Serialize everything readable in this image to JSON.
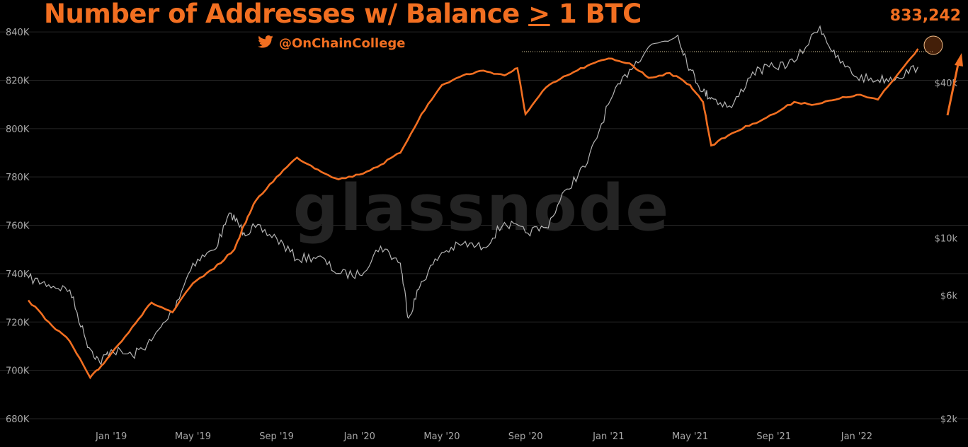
{
  "header": {
    "title_prefix": "Number of Addresses w/ Balance ",
    "title_ge": ">",
    "title_suffix": " 1 BTC",
    "handle": "@OnChainCollege",
    "watermark": "glassnode",
    "latest_value": "833,242"
  },
  "colors": {
    "accent": "#f26f21",
    "price": "#b5b5b5",
    "grid": "#262626",
    "background": "#000000"
  },
  "icons": {
    "handle": "twitter-bird-icon",
    "trend": "up-arrow-icon",
    "highlight": "highlight-circle"
  },
  "chart_data": {
    "type": "line",
    "title": "Number of Addresses w/ Balance > 1 BTC",
    "x_ticks": [
      "Jan '19",
      "May '19",
      "Sep '19",
      "Jan '20",
      "May '20",
      "Sep '20",
      "Jan '21",
      "May '21",
      "Sep '21",
      "Jan '22"
    ],
    "y_left": {
      "ticks": [
        "680K",
        "700K",
        "720K",
        "740K",
        "760K",
        "780K",
        "800K",
        "820K",
        "840K"
      ],
      "range": [
        680000,
        845000
      ]
    },
    "y_right": {
      "scale": "log",
      "ticks": [
        "$2k",
        "$6k",
        "$10k",
        "$40k"
      ]
    },
    "grid": "horizontal",
    "latest_value": 833242,
    "series": [
      {
        "axis": "left",
        "color": "#f26f21",
        "x": [
          "2018-09-01",
          "2018-10-01",
          "2018-11-01",
          "2018-12-01",
          "2018-12-15",
          "2019-01-01",
          "2019-02-01",
          "2019-03-01",
          "2019-04-01",
          "2019-05-01",
          "2019-06-01",
          "2019-07-01",
          "2019-07-15",
          "2019-08-01",
          "2019-09-01",
          "2019-10-01",
          "2019-11-01",
          "2019-12-01",
          "2020-01-01",
          "2020-02-01",
          "2020-03-01",
          "2020-04-01",
          "2020-05-01",
          "2020-06-01",
          "2020-07-01",
          "2020-08-01",
          "2020-08-20",
          "2020-09-01",
          "2020-10-01",
          "2020-11-01",
          "2020-12-01",
          "2021-01-01",
          "2021-02-01",
          "2021-03-01",
          "2021-04-01",
          "2021-05-01",
          "2021-05-20",
          "2021-06-01",
          "2021-07-01",
          "2021-08-01",
          "2021-09-01",
          "2021-10-01",
          "2021-11-01",
          "2021-12-01",
          "2022-01-01",
          "2022-02-01",
          "2022-03-01",
          "2022-04-01"
        ],
        "y": [
          729000,
          720000,
          712000,
          697000,
          701000,
          707000,
          718000,
          728000,
          724000,
          736000,
          742000,
          750000,
          760000,
          770000,
          780000,
          788000,
          783000,
          779000,
          781000,
          785000,
          790000,
          806000,
          818000,
          822000,
          824000,
          822000,
          825000,
          806000,
          817000,
          822000,
          826000,
          829000,
          827000,
          821000,
          823000,
          818000,
          811000,
          793000,
          798000,
          802000,
          806000,
          811000,
          810000,
          812000,
          814000,
          812000,
          822000,
          833000
        ]
      },
      {
        "axis": "right",
        "color": "#b5b5b5",
        "x": [
          "2018-09-01",
          "2018-10-01",
          "2018-11-01",
          "2018-11-25",
          "2018-12-15",
          "2019-01-01",
          "2019-02-01",
          "2019-03-01",
          "2019-04-01",
          "2019-05-01",
          "2019-06-01",
          "2019-06-26",
          "2019-07-15",
          "2019-08-01",
          "2019-09-01",
          "2019-10-01",
          "2019-11-01",
          "2019-12-01",
          "2020-01-01",
          "2020-02-01",
          "2020-03-01",
          "2020-03-13",
          "2020-04-01",
          "2020-05-01",
          "2020-06-01",
          "2020-07-01",
          "2020-08-01",
          "2020-09-01",
          "2020-10-01",
          "2020-11-01",
          "2020-12-01",
          "2021-01-01",
          "2021-02-01",
          "2021-03-01",
          "2021-04-13",
          "2021-05-01",
          "2021-05-20",
          "2021-06-01",
          "2021-07-01",
          "2021-08-01",
          "2021-09-01",
          "2021-10-01",
          "2021-11-08",
          "2021-12-01",
          "2022-01-01",
          "2022-02-01",
          "2022-03-01",
          "2022-04-01"
        ],
        "y": [
          7000,
          6600,
          6300,
          4000,
          3300,
          3700,
          3500,
          4000,
          5200,
          8000,
          9000,
          12500,
          10500,
          11000,
          10000,
          8300,
          8500,
          7300,
          7200,
          9300,
          8000,
          4900,
          6800,
          8800,
          9500,
          9200,
          11500,
          10500,
          11000,
          15500,
          19500,
          33000,
          45000,
          55000,
          61000,
          45000,
          37000,
          35000,
          32000,
          44000,
          46000,
          48000,
          66000,
          50000,
          42000,
          41000,
          42000,
          46000
        ]
      }
    ]
  }
}
